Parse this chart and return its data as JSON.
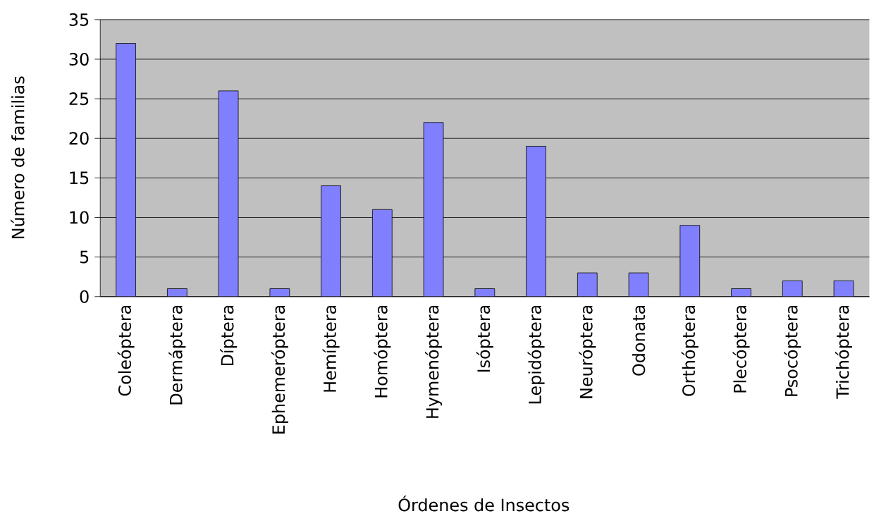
{
  "chart_data": {
    "type": "bar",
    "xlabel": "Órdenes de Insectos",
    "ylabel": "Número de familias",
    "categories": [
      "Coleóptera",
      "Dermáptera",
      "Díptera",
      "Ephemeróptera",
      "Hemíptera",
      "Homóptera",
      "Hymenóptera",
      "Isóptera",
      "Lepidóptera",
      "Neuróptera",
      "Odonata",
      "Orthóptera",
      "Plecóptera",
      "Psocóptera",
      "Trichóptera"
    ],
    "values": [
      32,
      1,
      26,
      1,
      14,
      11,
      22,
      1,
      19,
      3,
      3,
      9,
      1,
      2,
      2
    ],
    "color": "#8080ff",
    "ylim": [
      0,
      35
    ],
    "yticks": [
      0,
      5,
      10,
      15,
      20,
      25,
      30,
      35
    ],
    "grid": "y"
  }
}
